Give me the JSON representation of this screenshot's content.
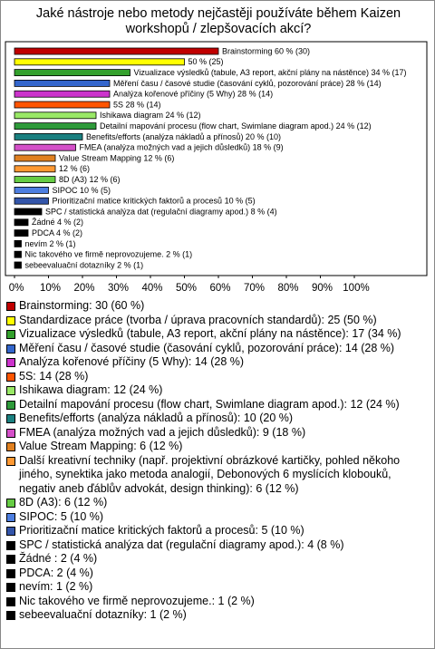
{
  "chart_data": {
    "type": "bar",
    "orientation": "horizontal",
    "title": "Jaké nástroje nebo metody nejčastěji používáte během Kaizen workshopů / zlepšovacích akcí?",
    "categories": [
      "Brainstorming: 30 (60 %)",
      "Standardizace práce (tvorba / úprava pracovních standardů): 25 (50 %)",
      "Vizualizace výsledků (tabule, A3 report, akční plány na nástěnce): 17 (34 %)",
      "Měření času / časové studie (časování cyklů, pozorování práce): 14 (28 %)",
      "Analýza kořenové příčiny (5 Why): 14 (28 %)",
      "5S: 14 (28 %)",
      "Ishikawa diagram: 12 (24 %)",
      "Detailní mapování procesu (flow chart, Swimlane diagram apod.): 12 (24 %)",
      "Benefits/efforts (analýza nákladů a přínosů): 10 (20 %)",
      "FMEA (analýza možných vad a jejich důsledků): 9 (18 %)",
      "Value Stream Mapping: 6 (12 %)",
      "Další kreativní techniky (např. projektivní obrázkové kartičky, pohled někoho jiného, synektika jako metoda analogií, Debonových 6 myslících klobouků, negativ aneb ďáblův advokát, design thinking): 6 (12 %)",
      "8D (A3): 6 (12 %)",
      "SIPOC: 5 (10 %)",
      "Prioritizační matice kritických faktorů a procesů: 5 (10 %)",
      "SPC / statistická analýza dat (regulační diagramy apod.): 4 (8 %)",
      "Žádné : 2 (4 %)",
      "PDCA: 2 (4 %)",
      "nevím: 1 (2 %)",
      "Nic takového ve firmě neprovozujeme.: 1 (2 %)",
      "sebeevaluační dotazníky: 1 (2 %)"
    ],
    "values": [
      60,
      50,
      34,
      28,
      28,
      28,
      24,
      24,
      20,
      18,
      12,
      12,
      12,
      10,
      10,
      8,
      4,
      4,
      2,
      2,
      2
    ],
    "value_labels": [
      "Brainstorming 60 % (30)",
      "50 % (25)",
      "Vizualizace výsledků (tabule, A3 report, akční plány na nástěnce) 34 % (17)",
      "Měření času / časové studie (časování cyklů, pozorování práce) 28 % (14)",
      "Analýza kořenové příčiny (5 Why) 28 % (14)",
      "5S 28 % (14)",
      "Ishikawa diagram 24 % (12)",
      "Detailní mapování procesu (flow chart, Swimlane diagram apod.) 24 % (12)",
      "Benefits/efforts (analýza nákladů a přínosů) 20 % (10)",
      "FMEA (analýza možných vad a jejich důsledků) 18 % (9)",
      "Value Stream Mapping 12 % (6)",
      "12 % (6)",
      "8D (A3) 12 % (6)",
      "SIPOC 10 % (5)",
      "Prioritizační matice kritických faktorů a procesů 10 % (5)",
      "SPC / statistická analýza dat (regulační diagramy apod.) 8 % (4)",
      "Žádné  4 % (2)",
      "PDCA 4 % (2)",
      "nevím 2 % (1)",
      "Nic takového ve firmě neprovozujeme. 2 % (1)",
      "sebeevaluační dotazníky 2 % (1)"
    ],
    "colors": [
      "#c00000",
      "#ffff00",
      "#33a02c",
      "#3366cc",
      "#cc33cc",
      "#ff5500",
      "#99e866",
      "#2e9a3a",
      "#1a8080",
      "#d44fc8",
      "#e08020",
      "#ff9933",
      "#66cc44",
      "#4d7ee0",
      "#3355aa",
      "#000000",
      "#000000",
      "#000000",
      "#000000",
      "#000000",
      "#000000"
    ],
    "xlim": [
      0,
      100
    ],
    "xticks": [
      {
        "value": 0,
        "label": "0%"
      },
      {
        "value": 10,
        "label": "10%"
      },
      {
        "value": 20,
        "label": "20%"
      },
      {
        "value": 30,
        "label": "30%"
      },
      {
        "value": 40,
        "label": "40%"
      },
      {
        "value": 50,
        "label": "50%"
      },
      {
        "value": 60,
        "label": "60%"
      },
      {
        "value": 70,
        "label": "70%"
      },
      {
        "value": 80,
        "label": "80%"
      },
      {
        "value": 90,
        "label": "90%"
      },
      {
        "value": 100,
        "label": "100%"
      }
    ]
  }
}
